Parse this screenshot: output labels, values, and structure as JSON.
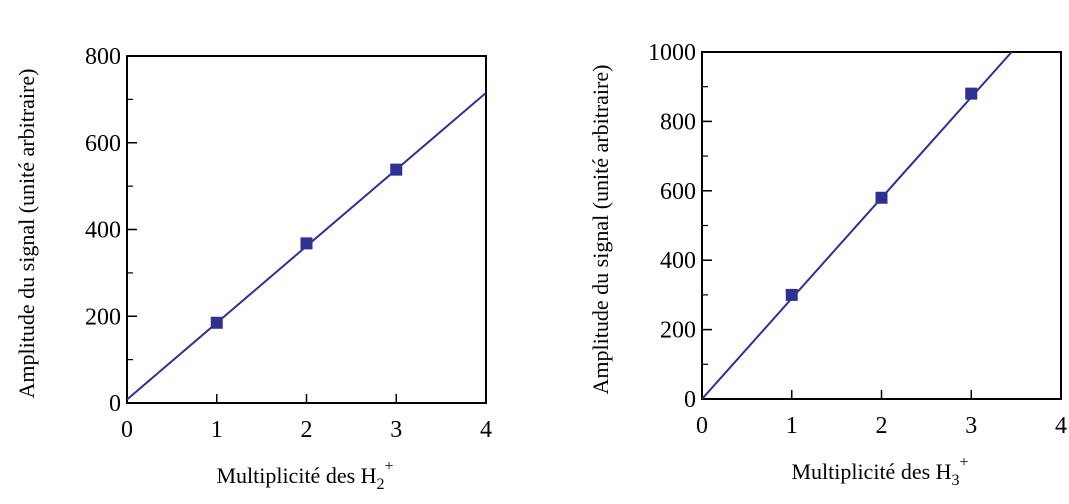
{
  "chart_data": [
    {
      "type": "scatter",
      "xlabel": "Multiplicité des H",
      "xlabel_subscript": "2",
      "xlabel_superscript": "+",
      "ylabel": "Amplitude du signal (unité arbitraire)",
      "xlim": [
        0,
        4
      ],
      "ylim": [
        0,
        800
      ],
      "x_ticks": [
        "0",
        "1",
        "2",
        "3",
        "4"
      ],
      "y_ticks": [
        "0",
        "200",
        "400",
        "600",
        "800"
      ],
      "y_minor_step": 100,
      "grid": false,
      "points": {
        "x": [
          1,
          2,
          3
        ],
        "y": [
          185,
          368,
          538
        ]
      },
      "fit_line": {
        "x": [
          0,
          4
        ],
        "y": [
          8,
          715
        ]
      },
      "marker_color": "#2e3192",
      "line_color": "#2e3192"
    },
    {
      "type": "scatter",
      "xlabel": "Multiplicité des H",
      "xlabel_subscript": "3",
      "xlabel_superscript": "+",
      "ylabel": "Amplitude du signal (unité arbitraire)",
      "xlim": [
        0,
        4
      ],
      "ylim": [
        0,
        1000
      ],
      "x_ticks": [
        "0",
        "1",
        "2",
        "3",
        "4"
      ],
      "y_ticks": [
        "0",
        "200",
        "400",
        "600",
        "800",
        "1000"
      ],
      "y_minor_step": 100,
      "grid": false,
      "points": {
        "x": [
          1,
          2,
          3
        ],
        "y": [
          300,
          580,
          880
        ]
      },
      "fit_line": {
        "x": [
          0,
          3.45
        ],
        "y": [
          0,
          1000
        ]
      },
      "marker_color": "#2e3192",
      "line_color": "#2e3192"
    }
  ]
}
